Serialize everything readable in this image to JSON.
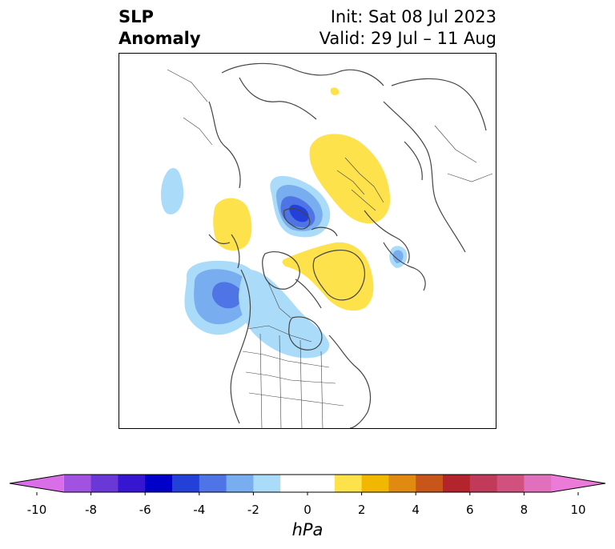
{
  "header": {
    "title_line1": "SLP",
    "title_line2": "Anomaly",
    "init_text": "Init: Sat 08 Jul 2023",
    "valid_text": "Valid: 29 Jul – 11 Aug"
  },
  "colorbar": {
    "unit": "hPa",
    "extend": "both",
    "tick_labels": [
      "-10",
      "-8",
      "-6",
      "-4",
      "-2",
      "0",
      "2",
      "4",
      "6",
      "8",
      "10"
    ],
    "colors": [
      "#d96ee8",
      "#a152e0",
      "#6b38d8",
      "#3616d0",
      "#0000c8",
      "#2340d8",
      "#4f74e6",
      "#78aef0",
      "#aadcfa",
      "#ffffff",
      "#ffffff",
      "#fde24c",
      "#f2b700",
      "#e08a12",
      "#c8561a",
      "#b4242c",
      "#c23a5a",
      "#d0507e",
      "#e070bc",
      "#ec7ad8"
    ],
    "boundaries": [
      -10,
      -9,
      -8,
      -7,
      -6,
      -5,
      -4,
      -3,
      -2,
      -1,
      0,
      1,
      2,
      3,
      4,
      5,
      6,
      7,
      8,
      9,
      10
    ]
  },
  "map": {
    "projection": "north polar stereographic",
    "anomaly_features": [
      {
        "name": "low-arctic-center",
        "min_hPa": -5
      },
      {
        "name": "low-northeast-pacific",
        "min_hPa": -4
      },
      {
        "name": "low-central-canada",
        "min_hPa": -2
      },
      {
        "name": "low-bering-strait",
        "min_hPa": -2
      },
      {
        "name": "low-north-atlantic-small",
        "min_hPa": -3
      },
      {
        "name": "high-western-russia",
        "max_hPa": 2
      },
      {
        "name": "high-greenland",
        "max_hPa": 2
      },
      {
        "name": "high-east-siberia",
        "max_hPa": 2
      }
    ]
  }
}
